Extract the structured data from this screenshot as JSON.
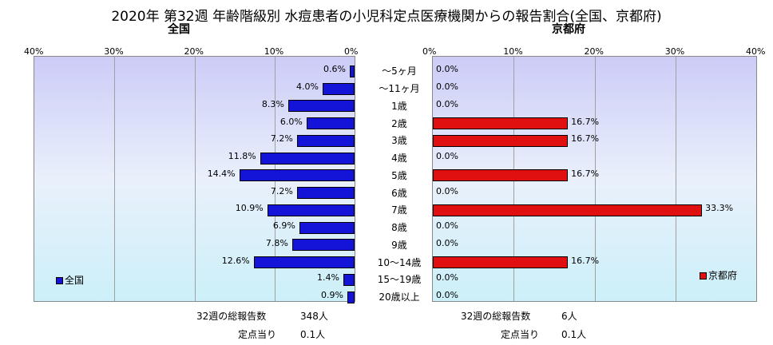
{
  "title": "2020年 第32週 年齢階級別 水痘患者の小児科定点医療機関からの報告割合(全国、京都府)",
  "colors": {
    "national": "#1414d8",
    "kyoto": "#e01010"
  },
  "chart_data": [
    {
      "type": "bar",
      "title": "全国",
      "orientation": "horizontal-reversed",
      "categories": [
        "～5ヶ月",
        "～11ヶ月",
        "1歳",
        "2歳",
        "3歳",
        "4歳",
        "5歳",
        "6歳",
        "7歳",
        "8歳",
        "9歳",
        "10～14歳",
        "15～19歳",
        "20歳以上"
      ],
      "series": [
        {
          "name": "全国",
          "values": [
            0.6,
            4.0,
            8.3,
            6.0,
            7.2,
            11.8,
            14.4,
            7.2,
            10.9,
            6.9,
            7.8,
            12.6,
            1.4,
            0.9
          ]
        }
      ],
      "value_labels": [
        "0.6%",
        "4.0%",
        "8.3%",
        "6.0%",
        "7.2%",
        "11.8%",
        "14.4%",
        "7.2%",
        "10.9%",
        "6.9%",
        "7.8%",
        "12.6%",
        "1.4%",
        "0.9%"
      ],
      "xlim": [
        0,
        40
      ],
      "ticks": [
        "40%",
        "30%",
        "20%",
        "10%",
        "0%"
      ],
      "legend": "bottom-left"
    },
    {
      "type": "bar",
      "title": "京都府",
      "orientation": "horizontal",
      "categories": [
        "～5ヶ月",
        "～11ヶ月",
        "1歳",
        "2歳",
        "3歳",
        "4歳",
        "5歳",
        "6歳",
        "7歳",
        "8歳",
        "9歳",
        "10～14歳",
        "15～19歳",
        "20歳以上"
      ],
      "series": [
        {
          "name": "京都府",
          "values": [
            0.0,
            0.0,
            0.0,
            16.7,
            16.7,
            0.0,
            16.7,
            0.0,
            33.3,
            0.0,
            0.0,
            16.7,
            0.0,
            0.0
          ]
        }
      ],
      "value_labels": [
        "0.0%",
        "0.0%",
        "0.0%",
        "16.7%",
        "16.7%",
        "0.0%",
        "16.7%",
        "0.0%",
        "33.3%",
        "0.0%",
        "0.0%",
        "16.7%",
        "0.0%",
        "0.0%"
      ],
      "xlim": [
        0,
        40
      ],
      "ticks": [
        "0%",
        "10%",
        "20%",
        "30%",
        "40%"
      ],
      "legend": "bottom-right"
    }
  ],
  "footer": {
    "national": {
      "total_label": "32週の総報告数",
      "total_value": "348人",
      "per_label": "定点当り",
      "per_value": "0.1人"
    },
    "kyoto": {
      "total_label": "32週の総報告数",
      "total_value": "6人",
      "per_label": "定点当り",
      "per_value": "0.1人"
    }
  }
}
